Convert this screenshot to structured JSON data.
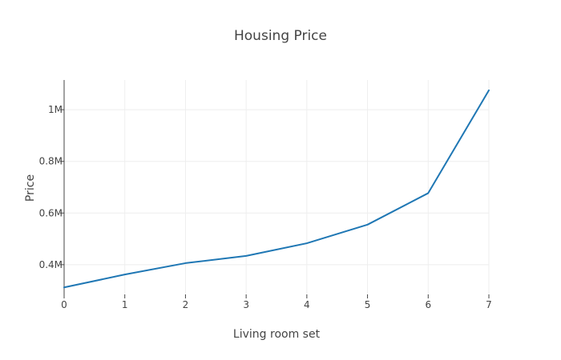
{
  "chart_data": {
    "type": "line",
    "title": "Housing Price",
    "xlabel": "Living room set",
    "ylabel": "Price",
    "x": [
      0,
      1,
      2,
      3,
      4,
      5,
      6,
      7
    ],
    "series": [
      {
        "values": [
          312000,
          362000,
          406000,
          434000,
          483000,
          555000,
          677000,
          1075000
        ]
      }
    ],
    "xlim": [
      0,
      7
    ],
    "ylim": [
      285000,
      1115000
    ],
    "x_ticks": [
      0,
      1,
      2,
      3,
      4,
      5,
      6,
      7
    ],
    "x_tick_labels": [
      "0",
      "1",
      "2",
      "3",
      "4",
      "5",
      "6",
      "7"
    ],
    "y_ticks": [
      400000,
      600000,
      800000,
      1000000
    ],
    "y_tick_labels": [
      "0.4M",
      "0.6M",
      "0.8M",
      "1M"
    ],
    "grid": true,
    "colors": {
      "line": "#1f77b4",
      "grid": "#eeeeee",
      "axis": "#444444",
      "text": "#444444",
      "background": "#ffffff"
    }
  }
}
